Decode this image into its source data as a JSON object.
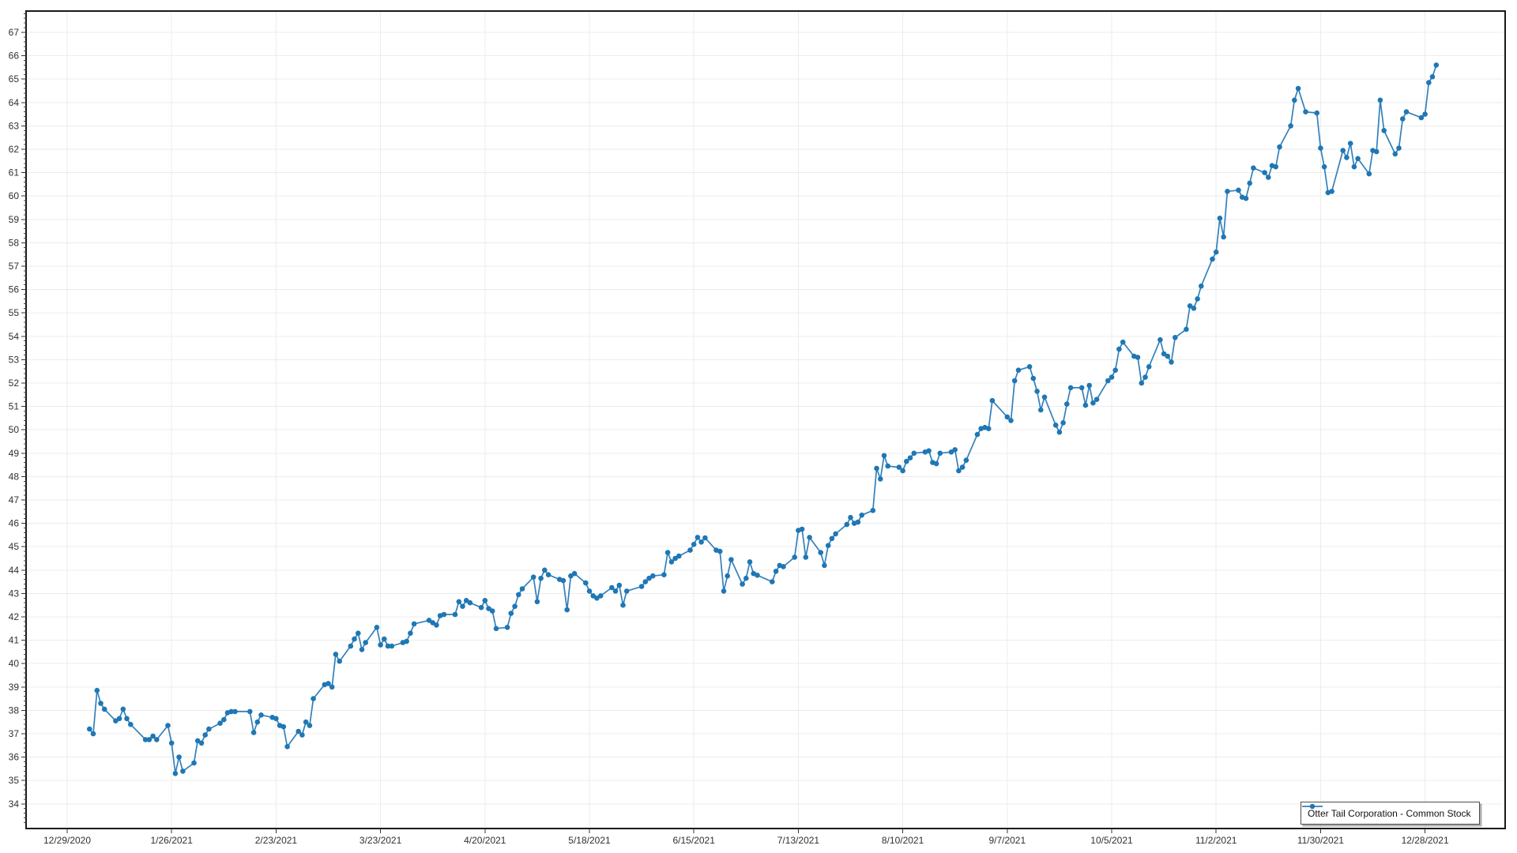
{
  "chart": {
    "legend": {
      "label": "Otter Tail Corporation - Common Stock"
    },
    "colors": {
      "series_line": "#3380BC",
      "series_marker": "#1F77B4",
      "grid": "#ECECEC",
      "axis": "#1A1A1A",
      "label": "#303030",
      "background": "#FFFFFF"
    },
    "y_axis": {
      "tick_labels": [
        34,
        35,
        36,
        37,
        38,
        39,
        40,
        41,
        42,
        43,
        44,
        45,
        46,
        47,
        48,
        49,
        50,
        51,
        52,
        53,
        54,
        55,
        56,
        57,
        58,
        59,
        60,
        61,
        62,
        63,
        64,
        65,
        66,
        67
      ],
      "minor_tick_interval": 0.2
    },
    "x_axis": {
      "tick_labels": [
        "12/29/2020",
        "1/26/2021",
        "2/23/2021",
        "3/23/2021",
        "4/20/2021",
        "5/18/2021",
        "6/15/2021",
        "7/13/2021",
        "8/10/2021",
        "9/7/2021",
        "10/5/2021",
        "11/2/2021",
        "11/30/2021",
        "12/28/2021"
      ]
    }
  },
  "chart_data": {
    "type": "line",
    "title": "",
    "xlabel": "",
    "ylabel": "",
    "series_name": "Otter Tail Corporation - Common Stock",
    "legend_position": "bottom-right",
    "grid": true,
    "marker": "circle",
    "ylim": [
      33,
      68
    ],
    "x": [
      "1/4/2021",
      "1/5/2021",
      "1/6/2021",
      "1/7/2021",
      "1/8/2021",
      "1/11/2021",
      "1/12/2021",
      "1/13/2021",
      "1/14/2021",
      "1/15/2021",
      "1/19/2021",
      "1/20/2021",
      "1/21/2021",
      "1/22/2021",
      "1/25/2021",
      "1/26/2021",
      "1/27/2021",
      "1/28/2021",
      "1/29/2021",
      "2/1/2021",
      "2/2/2021",
      "2/3/2021",
      "2/4/2021",
      "2/5/2021",
      "2/8/2021",
      "2/9/2021",
      "2/10/2021",
      "2/11/2021",
      "2/12/2021",
      "2/16/2021",
      "2/17/2021",
      "2/18/2021",
      "2/19/2021",
      "2/22/2021",
      "2/23/2021",
      "2/24/2021",
      "2/25/2021",
      "2/26/2021",
      "3/1/2021",
      "3/2/2021",
      "3/3/2021",
      "3/4/2021",
      "3/5/2021",
      "3/8/2021",
      "3/9/2021",
      "3/10/2021",
      "3/11/2021",
      "3/12/2021",
      "3/15/2021",
      "3/16/2021",
      "3/17/2021",
      "3/18/2021",
      "3/19/2021",
      "3/22/2021",
      "3/23/2021",
      "3/24/2021",
      "3/25/2021",
      "3/26/2021",
      "3/29/2021",
      "3/30/2021",
      "3/31/2021",
      "4/1/2021",
      "4/5/2021",
      "4/6/2021",
      "4/7/2021",
      "4/8/2021",
      "4/9/2021",
      "4/12/2021",
      "4/13/2021",
      "4/14/2021",
      "4/15/2021",
      "4/16/2021",
      "4/19/2021",
      "4/20/2021",
      "4/21/2021",
      "4/22/2021",
      "4/23/2021",
      "4/26/2021",
      "4/27/2021",
      "4/28/2021",
      "4/29/2021",
      "4/30/2021",
      "5/3/2021",
      "5/4/2021",
      "5/5/2021",
      "5/6/2021",
      "5/7/2021",
      "5/10/2021",
      "5/11/2021",
      "5/12/2021",
      "5/13/2021",
      "5/14/2021",
      "5/17/2021",
      "5/18/2021",
      "5/19/2021",
      "5/20/2021",
      "5/21/2021",
      "5/24/2021",
      "5/25/2021",
      "5/26/2021",
      "5/27/2021",
      "5/28/2021",
      "6/1/2021",
      "6/2/2021",
      "6/3/2021",
      "6/4/2021",
      "6/7/2021",
      "6/8/2021",
      "6/9/2021",
      "6/10/2021",
      "6/11/2021",
      "6/14/2021",
      "6/15/2021",
      "6/16/2021",
      "6/17/2021",
      "6/18/2021",
      "6/21/2021",
      "6/22/2021",
      "6/23/2021",
      "6/24/2021",
      "6/25/2021",
      "6/28/2021",
      "6/29/2021",
      "6/30/2021",
      "7/1/2021",
      "7/2/2021",
      "7/6/2021",
      "7/7/2021",
      "7/8/2021",
      "7/9/2021",
      "7/12/2021",
      "7/13/2021",
      "7/14/2021",
      "7/15/2021",
      "7/16/2021",
      "7/19/2021",
      "7/20/2021",
      "7/21/2021",
      "7/22/2021",
      "7/23/2021",
      "7/26/2021",
      "7/27/2021",
      "7/28/2021",
      "7/29/2021",
      "7/30/2021",
      "8/2/2021",
      "8/3/2021",
      "8/4/2021",
      "8/5/2021",
      "8/6/2021",
      "8/9/2021",
      "8/10/2021",
      "8/11/2021",
      "8/12/2021",
      "8/13/2021",
      "8/16/2021",
      "8/17/2021",
      "8/18/2021",
      "8/19/2021",
      "8/20/2021",
      "8/23/2021",
      "8/24/2021",
      "8/25/2021",
      "8/26/2021",
      "8/27/2021",
      "8/30/2021",
      "8/31/2021",
      "9/1/2021",
      "9/2/2021",
      "9/3/2021",
      "9/7/2021",
      "9/8/2021",
      "9/9/2021",
      "9/10/2021",
      "9/13/2021",
      "9/14/2021",
      "9/15/2021",
      "9/16/2021",
      "9/17/2021",
      "9/20/2021",
      "9/21/2021",
      "9/22/2021",
      "9/23/2021",
      "9/24/2021",
      "9/27/2021",
      "9/28/2021",
      "9/29/2021",
      "9/30/2021",
      "10/1/2021",
      "10/4/2021",
      "10/5/2021",
      "10/6/2021",
      "10/7/2021",
      "10/8/2021",
      "10/11/2021",
      "10/12/2021",
      "10/13/2021",
      "10/14/2021",
      "10/15/2021",
      "10/18/2021",
      "10/19/2021",
      "10/20/2021",
      "10/21/2021",
      "10/22/2021",
      "10/25/2021",
      "10/26/2021",
      "10/27/2021",
      "10/28/2021",
      "10/29/2021",
      "11/1/2021",
      "11/2/2021",
      "11/3/2021",
      "11/4/2021",
      "11/5/2021",
      "11/8/2021",
      "11/9/2021",
      "11/10/2021",
      "11/11/2021",
      "11/12/2021",
      "11/15/2021",
      "11/16/2021",
      "11/17/2021",
      "11/18/2021",
      "11/19/2021",
      "11/22/2021",
      "11/23/2021",
      "11/24/2021",
      "11/26/2021",
      "11/29/2021",
      "11/30/2021",
      "12/1/2021",
      "12/2/2021",
      "12/3/2021",
      "12/6/2021",
      "12/7/2021",
      "12/8/2021",
      "12/9/2021",
      "12/10/2021",
      "12/13/2021",
      "12/14/2021",
      "12/15/2021",
      "12/16/2021",
      "12/17/2021",
      "12/20/2021",
      "12/21/2021",
      "12/22/2021",
      "12/23/2021",
      "12/27/2021",
      "12/28/2021",
      "12/29/2021",
      "12/30/2021",
      "12/31/2021"
    ],
    "values": [
      37.2,
      37.0,
      38.85,
      38.3,
      38.05,
      37.55,
      37.65,
      38.05,
      37.65,
      37.4,
      36.75,
      36.75,
      36.9,
      36.75,
      37.35,
      36.6,
      35.3,
      36.0,
      35.4,
      35.75,
      36.7,
      36.6,
      36.95,
      37.2,
      37.45,
      37.6,
      37.9,
      37.95,
      37.95,
      37.95,
      37.05,
      37.5,
      37.8,
      37.7,
      37.65,
      37.35,
      37.3,
      36.45,
      37.1,
      36.95,
      37.5,
      37.35,
      38.5,
      39.1,
      39.15,
      39.0,
      40.4,
      40.1,
      40.75,
      41.05,
      41.3,
      40.6,
      40.9,
      41.55,
      40.8,
      41.05,
      40.75,
      40.75,
      40.9,
      40.95,
      41.3,
      41.7,
      41.85,
      41.75,
      41.65,
      42.05,
      42.1,
      42.1,
      42.65,
      42.45,
      42.7,
      42.6,
      42.4,
      42.7,
      42.35,
      42.25,
      41.5,
      41.55,
      42.15,
      42.45,
      42.95,
      43.2,
      43.7,
      42.65,
      43.65,
      44.0,
      43.8,
      43.6,
      43.55,
      42.3,
      43.75,
      43.85,
      43.45,
      43.1,
      42.9,
      42.8,
      42.9,
      43.25,
      43.1,
      43.35,
      42.5,
      43.1,
      43.3,
      43.5,
      43.65,
      43.75,
      43.8,
      44.75,
      44.35,
      44.5,
      44.6,
      44.85,
      45.1,
      45.4,
      45.2,
      45.38,
      44.85,
      44.8,
      43.1,
      43.75,
      44.45,
      43.4,
      43.65,
      44.35,
      43.85,
      43.78,
      43.5,
      43.95,
      44.2,
      44.15,
      44.55,
      45.7,
      45.75,
      44.55,
      45.4,
      44.75,
      44.2,
      45.05,
      45.35,
      45.55,
      45.95,
      46.25,
      46.0,
      46.05,
      46.35,
      46.55,
      48.35,
      47.9,
      48.9,
      48.45,
      48.4,
      48.25,
      48.65,
      48.8,
      49.0,
      49.05,
      49.1,
      48.6,
      48.55,
      49.0,
      49.05,
      49.15,
      48.25,
      48.4,
      48.7,
      49.8,
      50.05,
      50.1,
      50.05,
      51.25,
      50.55,
      50.4,
      52.1,
      52.55,
      52.7,
      52.2,
      51.65,
      50.85,
      51.4,
      50.2,
      49.9,
      50.3,
      51.1,
      51.8,
      51.8,
      51.05,
      51.9,
      51.15,
      51.3,
      52.1,
      52.25,
      52.55,
      53.45,
      53.75,
      53.15,
      53.1,
      52.0,
      52.25,
      52.7,
      53.85,
      53.25,
      53.15,
      52.9,
      53.95,
      54.3,
      55.3,
      55.2,
      55.6,
      56.15,
      57.3,
      57.6,
      59.05,
      58.25,
      60.2,
      60.25,
      59.95,
      59.9,
      60.55,
      61.2,
      61.0,
      60.8,
      61.3,
      61.25,
      62.1,
      63.0,
      64.1,
      64.6,
      63.6,
      63.55,
      62.05,
      61.25,
      60.15,
      60.2,
      61.95,
      61.65,
      62.25,
      61.25,
      61.6,
      60.95,
      61.95,
      61.9,
      64.1,
      62.8,
      61.8,
      62.05,
      63.3,
      63.6,
      63.35,
      63.5,
      64.85,
      65.1,
      65.6
    ]
  }
}
